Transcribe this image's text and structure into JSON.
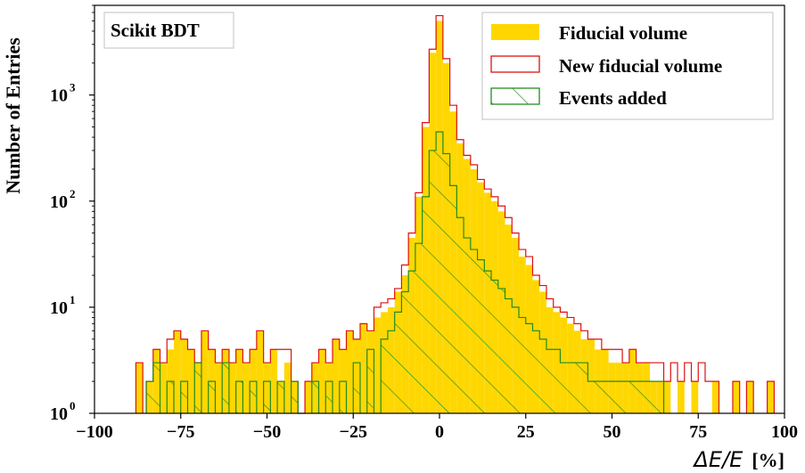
{
  "chart_data": {
    "type": "histogram",
    "annotation": "Scikit BDT",
    "xlabel_math": "ΔE/E",
    "xlabel_unit": "[%]",
    "ylabel": "Number of Entries",
    "xlim": [
      -100,
      100
    ],
    "ylim": [
      1,
      7000
    ],
    "yscale": "log",
    "grid": false,
    "legend_position": "top-right",
    "x_ticks": [
      -100,
      -75,
      -50,
      -25,
      0,
      25,
      50,
      75,
      100
    ],
    "x_tick_labels": [
      "−100",
      "−75",
      "−50",
      "−25",
      "0",
      "25",
      "50",
      "75",
      "100"
    ],
    "y_ticks": [
      {
        "value": 1,
        "base": "10",
        "exp": "0"
      },
      {
        "value": 10,
        "base": "10",
        "exp": "1"
      },
      {
        "value": 100,
        "base": "10",
        "exp": "2"
      },
      {
        "value": 1000,
        "base": "10",
        "exp": "3"
      }
    ],
    "colors": {
      "fiducial": "#ffd700",
      "new_fiducial": "#dd1111",
      "added": "#228b22"
    },
    "series": [
      {
        "name": "Fiducial volume",
        "style": "filled",
        "points": [
          [
            -87,
            3
          ],
          [
            -84,
            2
          ],
          [
            -82,
            4
          ],
          [
            -80,
            3
          ],
          [
            -78,
            4
          ],
          [
            -76,
            6
          ],
          [
            -74,
            5
          ],
          [
            -72,
            4
          ],
          [
            -70,
            3
          ],
          [
            -68,
            6
          ],
          [
            -66,
            4
          ],
          [
            -64,
            3
          ],
          [
            -62,
            4
          ],
          [
            -60,
            3
          ],
          [
            -58,
            4
          ],
          [
            -56,
            3
          ],
          [
            -54,
            4
          ],
          [
            -52,
            6
          ],
          [
            -50,
            3
          ],
          [
            -48,
            4
          ],
          [
            -46,
            2
          ],
          [
            -44,
            3
          ],
          [
            -42,
            2
          ],
          [
            -40,
            1
          ],
          [
            -38,
            2
          ],
          [
            -36,
            3
          ],
          [
            -34,
            4
          ],
          [
            -32,
            3
          ],
          [
            -30,
            5
          ],
          [
            -28,
            4
          ],
          [
            -26,
            6
          ],
          [
            -24,
            5
          ],
          [
            -22,
            7
          ],
          [
            -20,
            6
          ],
          [
            -18,
            8
          ],
          [
            -16,
            9
          ],
          [
            -14,
            10
          ],
          [
            -12,
            14
          ],
          [
            -10,
            20
          ],
          [
            -8,
            45
          ],
          [
            -6,
            110
          ],
          [
            -4,
            500
          ],
          [
            -2,
            2500
          ],
          [
            0,
            5000
          ],
          [
            2,
            2000
          ],
          [
            4,
            700
          ],
          [
            6,
            350
          ],
          [
            8,
            250
          ],
          [
            10,
            200
          ],
          [
            12,
            150
          ],
          [
            14,
            120
          ],
          [
            16,
            100
          ],
          [
            18,
            80
          ],
          [
            20,
            60
          ],
          [
            22,
            45
          ],
          [
            24,
            30
          ],
          [
            26,
            25
          ],
          [
            28,
            18
          ],
          [
            30,
            14
          ],
          [
            32,
            10
          ],
          [
            34,
            9
          ],
          [
            36,
            8
          ],
          [
            38,
            7
          ],
          [
            40,
            6
          ],
          [
            42,
            5
          ],
          [
            44,
            5
          ],
          [
            46,
            4
          ],
          [
            48,
            4
          ],
          [
            50,
            3
          ],
          [
            52,
            3
          ],
          [
            54,
            3
          ],
          [
            56,
            4
          ],
          [
            58,
            3
          ],
          [
            60,
            3
          ],
          [
            62,
            2
          ],
          [
            64,
            2
          ],
          [
            66,
            2
          ],
          [
            70,
            2
          ],
          [
            74,
            2
          ],
          [
            80,
            2
          ],
          [
            86,
            2
          ],
          [
            90,
            2
          ],
          [
            96,
            2
          ]
        ]
      },
      {
        "name": "New fiducial volume",
        "style": "step",
        "points": [
          [
            -87,
            3
          ],
          [
            -84,
            2
          ],
          [
            -82,
            4
          ],
          [
            -80,
            3
          ],
          [
            -78,
            5
          ],
          [
            -76,
            6
          ],
          [
            -74,
            5
          ],
          [
            -72,
            4
          ],
          [
            -70,
            3
          ],
          [
            -68,
            6
          ],
          [
            -66,
            4
          ],
          [
            -64,
            3
          ],
          [
            -62,
            4
          ],
          [
            -60,
            3
          ],
          [
            -58,
            4
          ],
          [
            -56,
            3
          ],
          [
            -54,
            4
          ],
          [
            -52,
            6
          ],
          [
            -50,
            3
          ],
          [
            -48,
            4
          ],
          [
            -46,
            4
          ],
          [
            -44,
            4
          ],
          [
            -42,
            2
          ],
          [
            -40,
            1
          ],
          [
            -38,
            2
          ],
          [
            -36,
            3
          ],
          [
            -34,
            4
          ],
          [
            -32,
            3
          ],
          [
            -30,
            5
          ],
          [
            -28,
            4
          ],
          [
            -26,
            6
          ],
          [
            -24,
            5
          ],
          [
            -22,
            7
          ],
          [
            -20,
            6
          ],
          [
            -18,
            10
          ],
          [
            -16,
            11
          ],
          [
            -14,
            12
          ],
          [
            -12,
            15
          ],
          [
            -10,
            25
          ],
          [
            -8,
            50
          ],
          [
            -6,
            120
          ],
          [
            -4,
            550
          ],
          [
            -2,
            2700
          ],
          [
            0,
            5600
          ],
          [
            2,
            2200
          ],
          [
            4,
            800
          ],
          [
            6,
            380
          ],
          [
            8,
            270
          ],
          [
            10,
            220
          ],
          [
            12,
            160
          ],
          [
            14,
            130
          ],
          [
            16,
            110
          ],
          [
            18,
            90
          ],
          [
            20,
            70
          ],
          [
            22,
            50
          ],
          [
            24,
            35
          ],
          [
            26,
            30
          ],
          [
            28,
            20
          ],
          [
            30,
            16
          ],
          [
            32,
            12
          ],
          [
            34,
            10
          ],
          [
            36,
            9
          ],
          [
            38,
            8
          ],
          [
            40,
            7
          ],
          [
            42,
            6
          ],
          [
            44,
            5
          ],
          [
            46,
            5
          ],
          [
            48,
            4
          ],
          [
            50,
            4
          ],
          [
            52,
            4
          ],
          [
            54,
            3
          ],
          [
            56,
            4
          ],
          [
            58,
            3
          ],
          [
            60,
            3
          ],
          [
            62,
            3
          ],
          [
            64,
            3
          ],
          [
            66,
            2
          ],
          [
            68,
            3
          ],
          [
            70,
            2
          ],
          [
            72,
            3
          ],
          [
            74,
            2
          ],
          [
            76,
            3
          ],
          [
            78,
            2
          ],
          [
            80,
            2
          ],
          [
            86,
            2
          ],
          [
            90,
            2
          ],
          [
            96,
            2
          ]
        ]
      },
      {
        "name": "Events added",
        "style": "hatched",
        "points": [
          [
            -84,
            2
          ],
          [
            -82,
            3
          ],
          [
            -78,
            2
          ],
          [
            -74,
            2
          ],
          [
            -70,
            3
          ],
          [
            -66,
            2
          ],
          [
            -62,
            3
          ],
          [
            -58,
            2
          ],
          [
            -54,
            2
          ],
          [
            -50,
            2
          ],
          [
            -46,
            2
          ],
          [
            -42,
            2
          ],
          [
            -36,
            2
          ],
          [
            -32,
            2
          ],
          [
            -28,
            2
          ],
          [
            -24,
            3
          ],
          [
            -20,
            4
          ],
          [
            -16,
            5
          ],
          [
            -14,
            6
          ],
          [
            -12,
            9
          ],
          [
            -10,
            14
          ],
          [
            -8,
            22
          ],
          [
            -6,
            40
          ],
          [
            -4,
            110
          ],
          [
            -2,
            300
          ],
          [
            0,
            450
          ],
          [
            2,
            280
          ],
          [
            4,
            140
          ],
          [
            6,
            70
          ],
          [
            8,
            45
          ],
          [
            10,
            35
          ],
          [
            12,
            28
          ],
          [
            14,
            22
          ],
          [
            16,
            18
          ],
          [
            18,
            15
          ],
          [
            20,
            12
          ],
          [
            22,
            10
          ],
          [
            24,
            8
          ],
          [
            26,
            7
          ],
          [
            28,
            6
          ],
          [
            30,
            5
          ],
          [
            32,
            4
          ],
          [
            34,
            4
          ],
          [
            36,
            3
          ],
          [
            38,
            3
          ],
          [
            40,
            3
          ],
          [
            42,
            3
          ],
          [
            44,
            2
          ],
          [
            46,
            2
          ],
          [
            48,
            2
          ],
          [
            50,
            2
          ],
          [
            52,
            2
          ],
          [
            54,
            2
          ],
          [
            56,
            2
          ],
          [
            58,
            2
          ],
          [
            60,
            2
          ],
          [
            62,
            2
          ],
          [
            64,
            2
          ]
        ]
      }
    ]
  }
}
